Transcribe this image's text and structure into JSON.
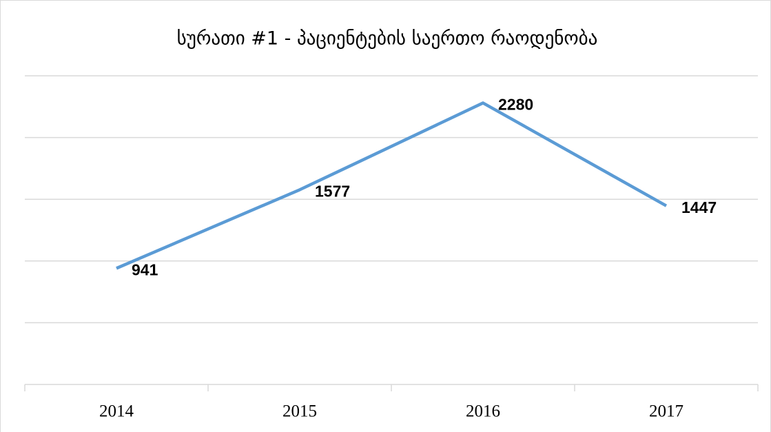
{
  "chart_data": {
    "type": "line",
    "title": "სურათი #1 - პაციენტების საერთო რაოდენობა",
    "categories": [
      "2014",
      "2015",
      "2016",
      "2017"
    ],
    "series": [
      {
        "name": null,
        "color": "#5b9bd5",
        "values": [
          941,
          1577,
          2280,
          1447
        ]
      }
    ],
    "ylim": [
      0,
      2500
    ],
    "yticks": [
      0,
      500,
      1000,
      1500,
      2000,
      2500
    ],
    "grid": true
  }
}
